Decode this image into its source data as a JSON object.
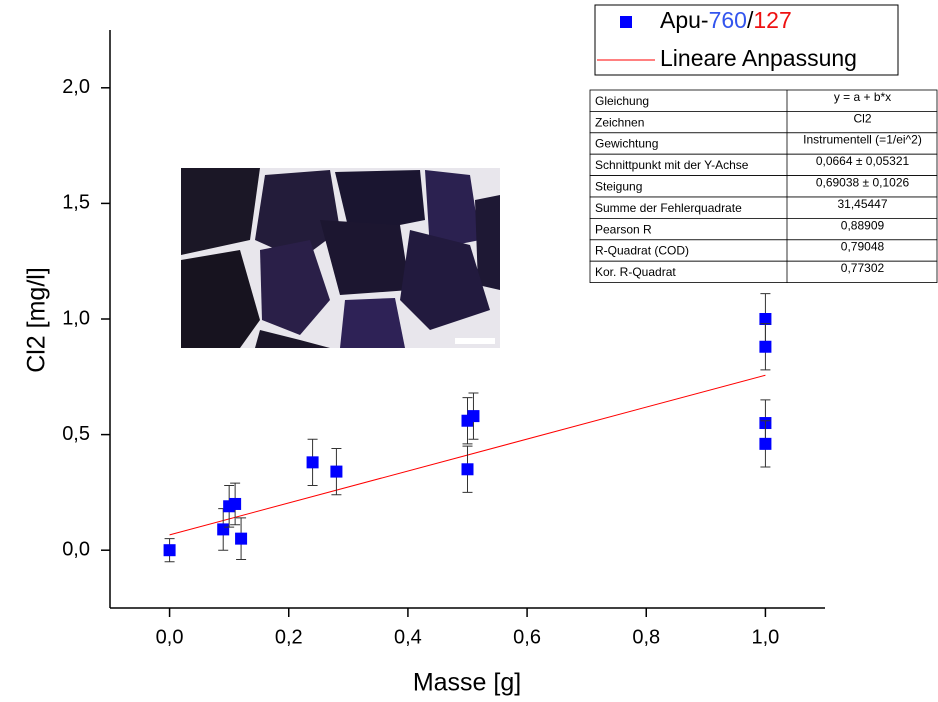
{
  "chart_data": {
    "type": "scatter",
    "x_label": "Masse [g]",
    "y_label": "Cl2 [mg/l]",
    "xlim": [
      -0.1,
      1.1
    ],
    "ylim": [
      -0.25,
      2.25
    ],
    "xticks": [
      {
        "value": 0,
        "label": "0,0"
      },
      {
        "value": 0.2,
        "label": "0,2"
      },
      {
        "value": 0.4,
        "label": "0,4"
      },
      {
        "value": 0.6,
        "label": "0,6"
      },
      {
        "value": 0.8,
        "label": "0,8"
      },
      {
        "value": 1.0,
        "label": "1,0"
      }
    ],
    "yticks": [
      {
        "value": 0,
        "label": "0,0"
      },
      {
        "value": 0.5,
        "label": "0,5"
      },
      {
        "value": 1.0,
        "label": "1,0"
      },
      {
        "value": 1.5,
        "label": "1,5"
      },
      {
        "value": 2.0,
        "label": "2,0"
      }
    ],
    "series": [
      {
        "name_parts": [
          {
            "text": "Apu-",
            "color": "#000000"
          },
          {
            "text": "760",
            "color": "#3355ee"
          },
          {
            "text": "/",
            "color": "#000000"
          },
          {
            "text": "127",
            "color": "#ee1111"
          }
        ],
        "color": "#0000ff",
        "x": [
          0,
          0.09,
          0.1,
          0.11,
          0.12,
          0.24,
          0.28,
          0.5,
          0.5,
          0.51,
          1.0,
          1.0,
          1.0,
          1.0
        ],
        "values": [
          0,
          0.09,
          0.19,
          0.2,
          0.05,
          0.38,
          0.34,
          0.56,
          0.35,
          0.58,
          1.0,
          0.88,
          0.55,
          0.46
        ],
        "errors": [
          0.05,
          0.09,
          0.09,
          0.09,
          0.09,
          0.1,
          0.1,
          0.1,
          0.1,
          0.1,
          0.11,
          0.1,
          0.1,
          0.1
        ]
      },
      {
        "name": "Lineare Anpassung",
        "type": "line",
        "color": "#ff0000",
        "x": [
          0,
          1.0
        ],
        "values": [
          0.0664,
          0.7568
        ]
      }
    ],
    "stats_table": {
      "rows": [
        [
          "Gleichung",
          "y = a + b*x"
        ],
        [
          "Zeichnen",
          "Cl2"
        ],
        [
          "Gewichtung",
          "Instrumentell (=1/ei^2)"
        ],
        [
          "Schnittpunkt mit der Y-Achse",
          "0,0664 ± 0,05321"
        ],
        [
          "Steigung",
          "0,69038 ± 0,1026"
        ],
        [
          "Summe der Fehlerquadrate",
          "31,45447"
        ],
        [
          "Pearson R",
          "0,88909"
        ],
        [
          "R-Quadrat (COD)",
          "0,79048"
        ],
        [
          "Kor. R-Quadrat",
          "0,77302"
        ]
      ]
    }
  }
}
